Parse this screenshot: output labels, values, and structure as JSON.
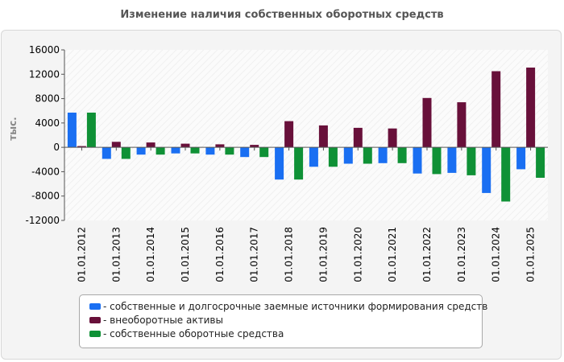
{
  "title": "Изменение наличия собственных оборотных средств",
  "chart_data": {
    "type": "bar",
    "title": "Изменение наличия собственных оборотных средств",
    "ylabel": "тыс.",
    "xlabel": "",
    "ylim": [
      -12000,
      16000
    ],
    "yticks": [
      16000,
      12000,
      8000,
      4000,
      0,
      -4000,
      -8000,
      -12000
    ],
    "grid": false,
    "legend_position": "bottom",
    "categories": [
      "01.01.2012",
      "01.01.2013",
      "01.01.2014",
      "01.01.2015",
      "01.01.2016",
      "01.01.2017",
      "01.01.2018",
      "01.01.2019",
      "01.01.2020",
      "01.01.2021",
      "01.01.2022",
      "01.01.2023",
      "01.01.2024",
      "01.01.2025"
    ],
    "series": [
      {
        "name": "собственные и долгосрочные заемные источники формирования средств",
        "color": "#1a6ff2",
        "values": [
          5700,
          -1900,
          -1200,
          -1000,
          -1200,
          -1600,
          -5300,
          -3200,
          -2700,
          -2600,
          -4300,
          -4200,
          -7500,
          -3600
        ]
      },
      {
        "name": "внеоборотные активы",
        "color": "#68103a",
        "values": [
          200,
          900,
          800,
          600,
          500,
          400,
          4300,
          3600,
          3200,
          3100,
          8100,
          7400,
          12500,
          13100
        ]
      },
      {
        "name": "собственные оборотные средства",
        "color": "#0f9136",
        "values": [
          5700,
          -1900,
          -1200,
          -1000,
          -1200,
          -1600,
          -5300,
          -3200,
          -2700,
          -2600,
          -4400,
          -4600,
          -8900,
          -5000
        ]
      }
    ]
  }
}
